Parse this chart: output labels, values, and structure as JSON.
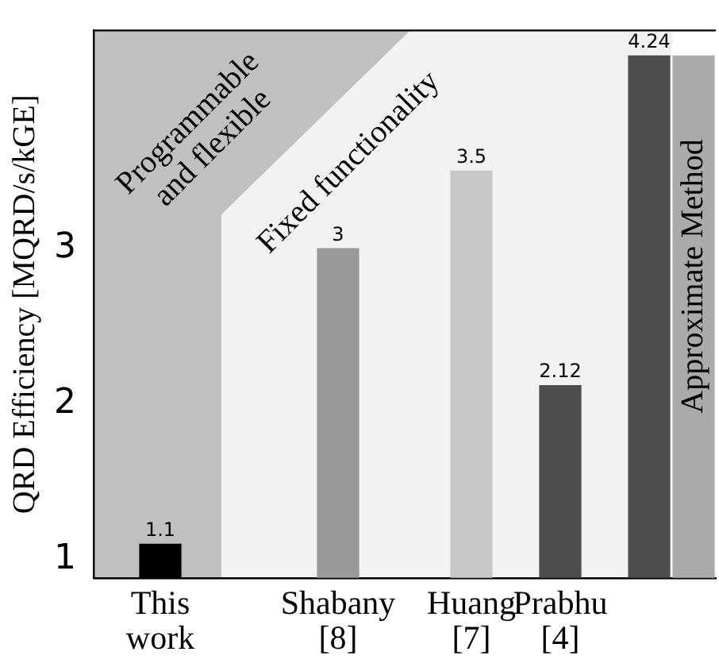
{
  "chart_data": {
    "type": "bar",
    "ylabel": "QRD Efficiency [MQRD/s/kGE]",
    "categories": [
      null,
      "This work",
      null,
      null,
      null,
      "Shabany [8]",
      null,
      null,
      "Huang [7]",
      null,
      "Prabhu [4]",
      null,
      null,
      null
    ],
    "values": [
      null,
      1.1,
      null,
      null,
      null,
      3,
      null,
      null,
      3.5,
      null,
      2.12,
      null,
      4.24,
      4.24
    ],
    "colors": [
      "#000000",
      "#000000",
      "#000000",
      "#000000",
      "#000000",
      "#999999",
      "#000000",
      "#000000",
      "#c8c8c8",
      "#000000",
      "#4d4d4d",
      "#000000",
      "#4d4d4d",
      "#aaaaaa"
    ],
    "value_labels": [
      null,
      "1.1",
      null,
      null,
      null,
      "3",
      null,
      null,
      "3.5",
      null,
      "2.12",
      null,
      "4.24",
      null
    ],
    "ylim": [
      0.88,
      4.4
    ],
    "yticks": [
      1,
      2,
      3
    ],
    "annotations": [
      "Programmable and flexible",
      "Fixed functionality",
      "Approximate Method"
    ]
  }
}
